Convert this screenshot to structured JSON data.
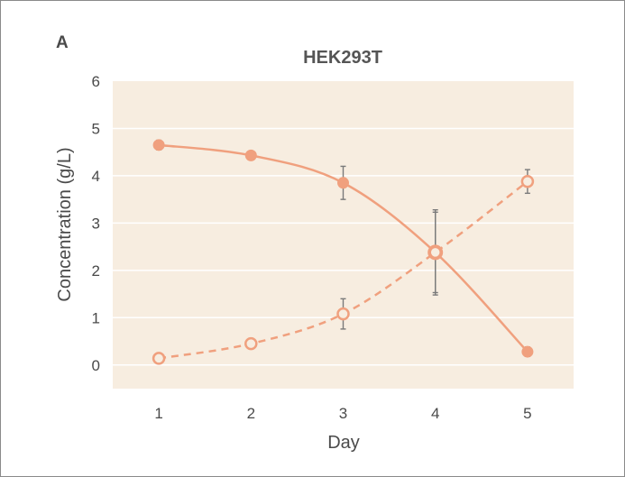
{
  "panel_label": "A",
  "chart_data": {
    "type": "line",
    "title": "HEK293T",
    "xlabel": "Day",
    "ylabel": "Concentration (g/L)",
    "x": [
      1,
      2,
      3,
      4,
      5
    ],
    "xlim": [
      0.5,
      5.5
    ],
    "ylim": [
      -0.5,
      6
    ],
    "yticks": [
      0,
      1,
      2,
      3,
      4,
      5,
      6
    ],
    "xticks": [
      1,
      2,
      3,
      4,
      5
    ],
    "grid": true,
    "legend": "none",
    "series": [
      {
        "marker": "filled-circle",
        "line": "solid",
        "color": "#f0a07e",
        "values": [
          4.65,
          4.43,
          3.85,
          2.38,
          0.28
        ],
        "errors": [
          0.1,
          0.05,
          0.35,
          0.9,
          0.1
        ]
      },
      {
        "marker": "open-circle",
        "line": "dashed",
        "color": "#f0a07e",
        "values": [
          0.14,
          0.45,
          1.08,
          2.38,
          3.88
        ],
        "errors": [
          0.05,
          0.05,
          0.32,
          0.85,
          0.25
        ]
      }
    ],
    "colors": {
      "plot_bg": "#f7ede0",
      "grid": "#ffffff",
      "error_bar": "#7a7a7a"
    }
  }
}
